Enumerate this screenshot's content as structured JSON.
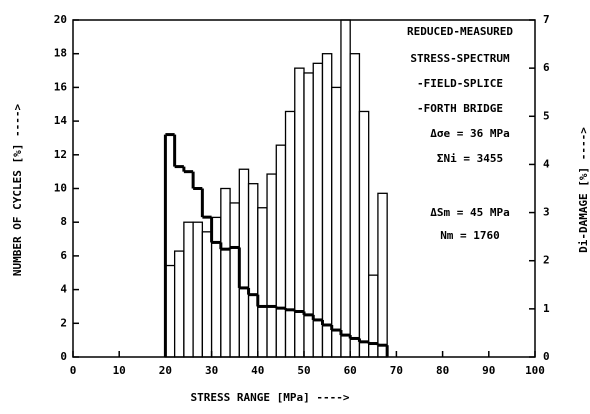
{
  "chart_data": {
    "type": "histogram",
    "xlabel": "STRESS RANGE [MPa]  ---->",
    "ylabel": "NUMBER OF CYCLES [%]  ---->",
    "y2label": "Di-DAMAGE [%]  ---->",
    "annotations": [
      "REDUCED-MEASURED",
      "STRESS-SPECTRUM",
      "-FIELD-SPLICE",
      "-FORTH BRIDGE",
      "Δσe = 36 MPa",
      "ΣNi = 3455",
      "ΔSm = 45 MPa",
      "Nm = 1760"
    ],
    "bins": [
      20,
      22,
      24,
      26,
      28,
      30,
      32,
      34,
      36,
      38,
      40,
      42,
      44,
      46,
      48,
      50,
      52,
      54,
      56,
      58,
      60,
      62,
      64,
      66,
      68
    ],
    "series": [
      {
        "name": "Di-DAMAGE",
        "axis": "y2",
        "style": "bar",
        "color": "#000000",
        "values": [
          1.9,
          2.2,
          2.8,
          2.8,
          2.6,
          2.9,
          3.5,
          3.2,
          3.9,
          3.6,
          3.1,
          3.8,
          4.4,
          5.1,
          6.0,
          5.9,
          6.1,
          6.3,
          5.6,
          7.0,
          6.3,
          5.1,
          1.7,
          3.4
        ]
      },
      {
        "name": "NUMBER OF CYCLES",
        "axis": "y",
        "style": "step",
        "color": "#000000",
        "values": [
          13.2,
          11.3,
          11.0,
          10.0,
          8.3,
          6.8,
          6.4,
          6.5,
          4.1,
          3.7,
          3.0,
          3.0,
          2.9,
          2.8,
          2.7,
          2.5,
          2.2,
          1.9,
          1.6,
          1.3,
          1.1,
          0.9,
          0.8,
          0.7
        ]
      }
    ],
    "xlim": [
      0,
      100
    ],
    "xticks": [
      0,
      10,
      20,
      30,
      40,
      50,
      60,
      70,
      80,
      90,
      100
    ],
    "ylim": [
      0,
      20
    ],
    "yticks": [
      0,
      2,
      4,
      6,
      8,
      10,
      12,
      14,
      16,
      18,
      20
    ],
    "y2lim": [
      0,
      7
    ],
    "y2ticks": [
      0,
      1,
      2,
      3,
      4,
      5,
      6,
      7
    ]
  }
}
